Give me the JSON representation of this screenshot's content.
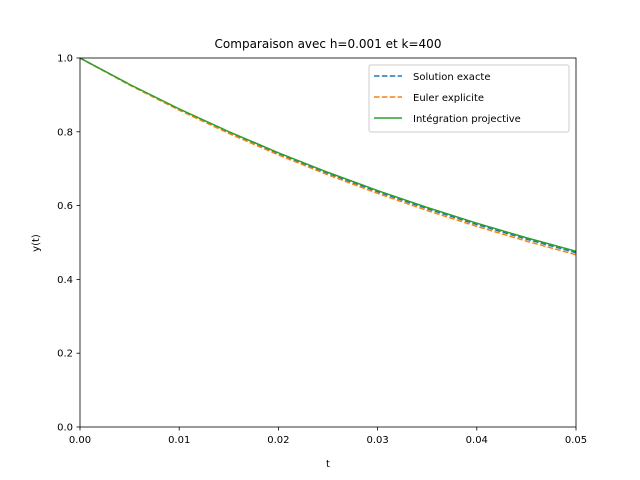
{
  "chart_data": {
    "type": "line",
    "title": "Comparaison avec h=0.001 et k=400",
    "xlabel": "t",
    "ylabel": "y(t)",
    "xlim": [
      0,
      0.05
    ],
    "ylim": [
      0,
      1.0
    ],
    "xticks": [
      "0.00",
      "0.01",
      "0.02",
      "0.03",
      "0.04",
      "0.05"
    ],
    "yticks": [
      "0.0",
      "0.2",
      "0.4",
      "0.6",
      "0.8",
      "1.0"
    ],
    "grid": false,
    "legend_position": "top-right",
    "x": [
      0,
      0.005,
      0.01,
      0.015,
      0.02,
      0.025,
      0.03,
      0.035,
      0.04,
      0.045,
      0.05
    ],
    "series": [
      {
        "name": "Solution exacte",
        "style": "dashed",
        "color": "#1f77b4",
        "values": [
          1.0,
          0.9277,
          0.8607,
          0.7985,
          0.7408,
          0.6873,
          0.6376,
          0.5916,
          0.5488,
          0.5092,
          0.4724
        ]
      },
      {
        "name": "Euler explicite",
        "style": "dashed",
        "color": "#ff7f0e",
        "values": [
          1.0,
          0.9266,
          0.8587,
          0.7957,
          0.7374,
          0.6833,
          0.6332,
          0.5867,
          0.5437,
          0.5038,
          0.4669
        ]
      },
      {
        "name": "Intégration projective",
        "style": "solid",
        "color": "#2ca02c",
        "values": [
          1.0,
          0.9285,
          0.8621,
          0.8004,
          0.7432,
          0.69,
          0.6407,
          0.5949,
          0.5523,
          0.5128,
          0.4762
        ]
      }
    ]
  }
}
